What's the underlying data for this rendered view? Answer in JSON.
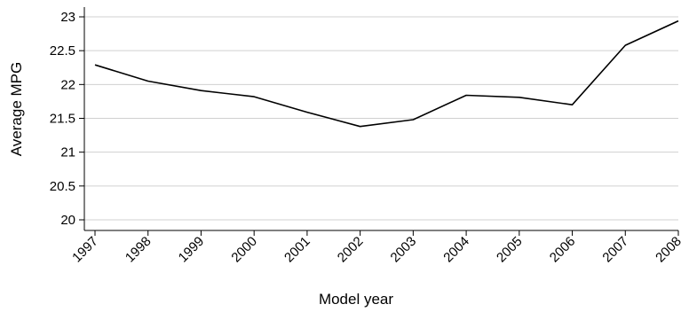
{
  "chart_data": {
    "type": "line",
    "categories": [
      "1997",
      "1998",
      "1999",
      "2000",
      "2001",
      "2002",
      "2003",
      "2004",
      "2005",
      "2006",
      "2007",
      "2008"
    ],
    "series": [
      {
        "values": [
          22.29,
          22.05,
          21.91,
          21.82,
          21.59,
          21.38,
          21.48,
          21.84,
          21.81,
          21.7,
          22.58,
          22.94
        ]
      }
    ],
    "xlabel": "Model year",
    "ylabel": "Average MPG",
    "ylim": [
      20,
      23
    ],
    "yticks": [
      "20",
      "20.5",
      "21",
      "21.5",
      "22",
      "22.5",
      "23"
    ],
    "grid": true,
    "colors": {
      "line": "#000000",
      "grid": "#d0d0d0"
    }
  }
}
